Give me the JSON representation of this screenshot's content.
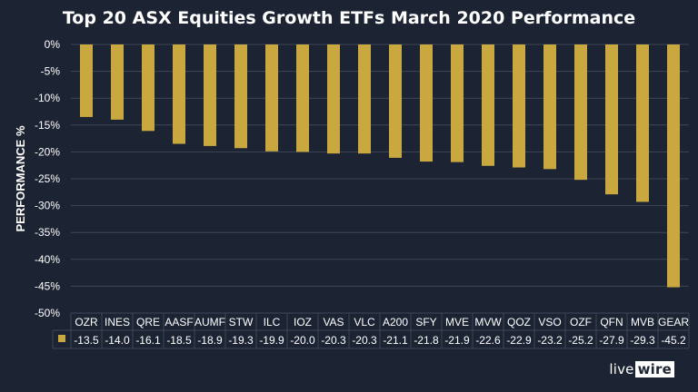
{
  "chart_data": {
    "type": "bar",
    "title": "Top 20 ASX Equities Growth ETFs March 2020 Performance",
    "ylabel": "PERFORMANCE %",
    "xlabel": "",
    "ylim": [
      -50,
      0
    ],
    "yticks": [
      "0%",
      "-5%",
      "-10%",
      "-15%",
      "-20%",
      "-25%",
      "-30%",
      "-35%",
      "-40%",
      "-45%",
      "-50%"
    ],
    "ytick_values": [
      0,
      -5,
      -10,
      -15,
      -20,
      -25,
      -30,
      -35,
      -40,
      -45,
      -50
    ],
    "grid": true,
    "legend_in_table": true,
    "categories": [
      "OZR",
      "INES",
      "QRE",
      "AASF",
      "AUMF",
      "STW",
      "ILC",
      "IOZ",
      "VAS",
      "VLC",
      "A200",
      "SFY",
      "MVE",
      "MVW",
      "QOZ",
      "VSO",
      "OZF",
      "QFN",
      "MVB",
      "GEAR"
    ],
    "series": [
      {
        "color": "#c9a840",
        "values": [
          -13.5,
          -14.0,
          -16.1,
          -18.5,
          -18.9,
          -19.3,
          -19.9,
          -20.0,
          -20.3,
          -20.3,
          -21.1,
          -21.8,
          -21.9,
          -22.6,
          -22.9,
          -23.2,
          -25.2,
          -27.9,
          -29.3,
          -45.2
        ],
        "labels": [
          "-13.5",
          "-14.0",
          "-16.1",
          "-18.5",
          "-18.9",
          "-19.3",
          "-19.9",
          "-20.0",
          "-20.3",
          "-20.3",
          "-21.1",
          "-21.8",
          "-21.9",
          "-22.6",
          "-22.9",
          "-23.2",
          "-25.2",
          "-27.9",
          "-29.3",
          "-45.2"
        ]
      }
    ]
  },
  "brand": {
    "part1": "live",
    "part2": "wire"
  },
  "colors": {
    "background": "#1c2434",
    "bar": "#c9a840",
    "grid": "#3e4656",
    "text": "#ffffff"
  }
}
